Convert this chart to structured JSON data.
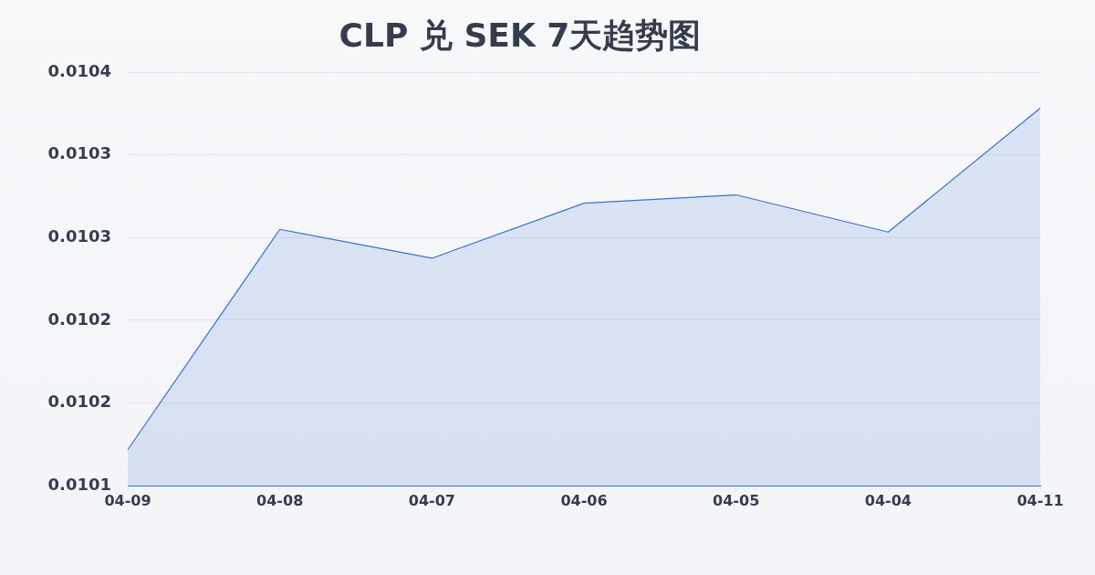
{
  "chart_data": {
    "type": "area",
    "title": "CLP 兑 SEK 7天趋势图",
    "categories": [
      "04-09",
      "04-08",
      "04-07",
      "04-06",
      "04-05",
      "04-04",
      "04-11"
    ],
    "series": [
      {
        "color": "#3d6fd1",
        "values": [
          0.010126,
          0.010286,
          0.010265,
          0.010305,
          0.010311,
          0.010284,
          0.010374
        ]
      }
    ],
    "ylim": [
      0.0101,
      0.0104
    ],
    "yticks": [
      0.0101,
      {
        "value": 0.01016,
        "label": "0.0102"
      },
      {
        "value": 0.01022,
        "label": "0.0102"
      },
      {
        "value": 0.01028,
        "label": "0.0103"
      },
      {
        "value": 0.01034,
        "label": "0.0103"
      },
      0.0104
    ],
    "grid": "y",
    "marker": "none"
  }
}
